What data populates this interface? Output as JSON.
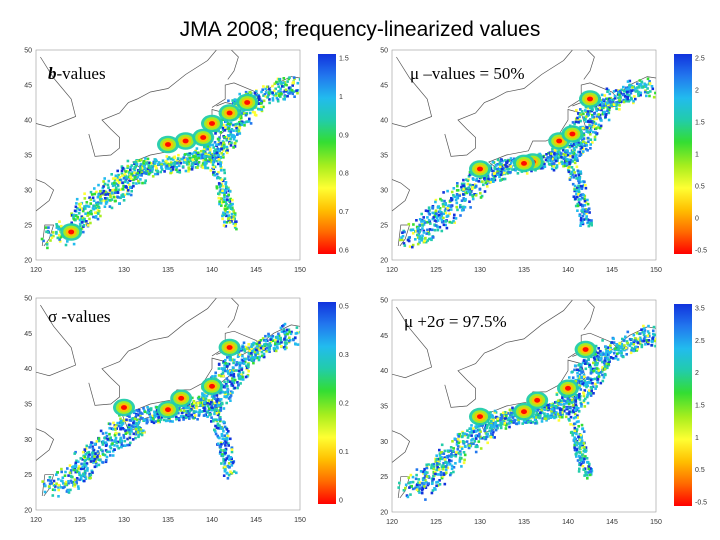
{
  "title": "JMA 2008; frequency-linearized values",
  "panels": [
    {
      "id": "b",
      "label_symbol": "b",
      "label_text": "-values",
      "x_ticks": [
        "120",
        "125",
        "130",
        "135",
        "140",
        "145",
        "150"
      ],
      "y_ticks": [
        "50",
        "45",
        "40",
        "35",
        "30",
        "25",
        "20"
      ],
      "colorbar_ticks": [
        "1.5",
        "1",
        "0.9",
        "0.8",
        "0.7",
        "0.6"
      ]
    },
    {
      "id": "mu",
      "label_symbol": "μ",
      "label_text": " –values = 50%",
      "x_ticks": [
        "120",
        "125",
        "130",
        "135",
        "140",
        "145",
        "150"
      ],
      "y_ticks": [
        "50",
        "45",
        "40",
        "35",
        "30",
        "25",
        "20"
      ],
      "colorbar_ticks": [
        "2.5",
        "2",
        "1.5",
        "1",
        "0.5",
        "0",
        "-0.5"
      ]
    },
    {
      "id": "sigma",
      "label_symbol": "σ",
      "label_text": " -values",
      "x_ticks": [
        "120",
        "125",
        "130",
        "135",
        "140",
        "145",
        "150"
      ],
      "y_ticks": [
        "50",
        "45",
        "40",
        "35",
        "30",
        "25",
        "20"
      ],
      "colorbar_ticks": [
        "0.5",
        "0.3",
        "0.2",
        "0.1",
        "0"
      ]
    },
    {
      "id": "mu2s",
      "label_symbol": "μ",
      "label_text": " +2σ = 97.5%",
      "x_ticks": [
        "120",
        "125",
        "130",
        "135",
        "140",
        "145",
        "150"
      ],
      "y_ticks": [
        "50",
        "45",
        "40",
        "35",
        "30",
        "25",
        "20"
      ],
      "colorbar_ticks": [
        "3.5",
        "2.5",
        "2",
        "1.5",
        "1",
        "0.5",
        "-0.5"
      ]
    }
  ],
  "colors": {
    "colormap": [
      "#ff0000",
      "#ff6a00",
      "#ffbf00",
      "#ffff33",
      "#a8ee1e",
      "#33dd33",
      "#22ccaa",
      "#22bbee",
      "#2277ee",
      "#1133dd"
    ]
  }
}
